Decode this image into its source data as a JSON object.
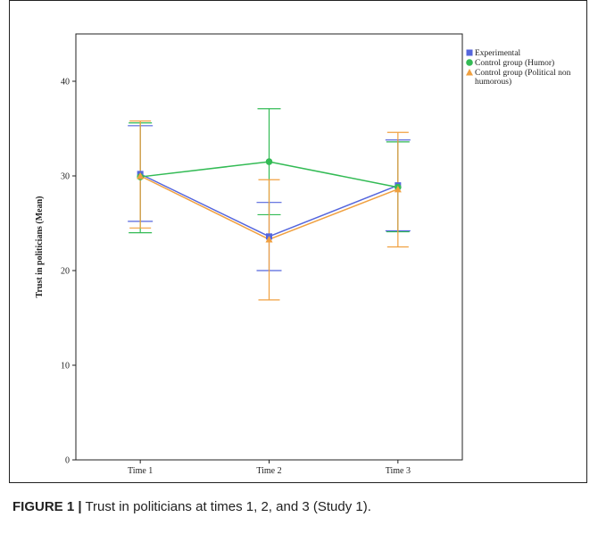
{
  "chart_data": {
    "type": "line",
    "title": "",
    "xlabel": "",
    "ylabel": "Trust in politicians (Mean)",
    "categories": [
      "Time 1",
      "Time 2",
      "Time 3"
    ],
    "ylim": [
      0,
      45
    ],
    "yticks": [
      0,
      10,
      20,
      30,
      40
    ],
    "grid": false,
    "legend_position": "right",
    "error_bars": true,
    "series": [
      {
        "name": "Experimental",
        "color": "#5566dd",
        "marker": "square",
        "values": [
          30.2,
          23.6,
          29.0
        ],
        "err_low": [
          25.2,
          20.0,
          24.2
        ],
        "err_high": [
          35.3,
          27.2,
          33.8
        ]
      },
      {
        "name": "Control group (Humor)",
        "color": "#33bb55",
        "marker": "circle",
        "values": [
          29.9,
          31.5,
          28.8
        ],
        "err_low": [
          24.0,
          25.9,
          24.1
        ],
        "err_high": [
          35.6,
          37.1,
          33.6
        ]
      },
      {
        "name": "Control group (Political non humorous)",
        "legend_lines": [
          "Control group (Political non",
          "humorous)"
        ],
        "color": "#f0a040",
        "marker": "triangle",
        "values": [
          30.0,
          23.3,
          28.6
        ],
        "err_low": [
          24.5,
          16.9,
          22.5
        ],
        "err_high": [
          35.8,
          29.6,
          34.6
        ]
      }
    ]
  },
  "caption": {
    "label": "FIGURE 1 |",
    "text": " Trust in politicians at times 1, 2, and 3 (Study 1)."
  }
}
